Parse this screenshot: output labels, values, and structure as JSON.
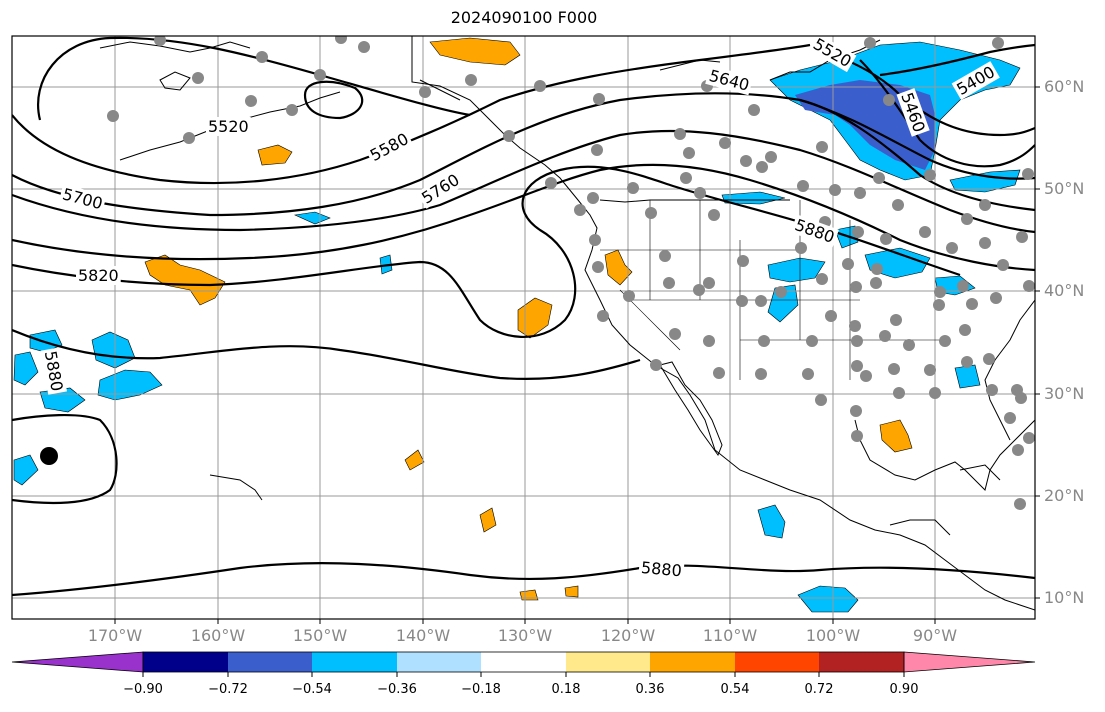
{
  "title": "2024090100 F000",
  "map": {
    "projection": "PlateCarree",
    "lon_labels": [
      "170°W",
      "160°W",
      "150°W",
      "140°W",
      "130°W",
      "120°W",
      "110°W",
      "100°W",
      "90°W"
    ],
    "lat_labels": [
      "60°N",
      "50°N",
      "40°N",
      "30°N",
      "20°N",
      "10°N"
    ],
    "contour_labels": [
      "5520",
      "5580",
      "5640",
      "5700",
      "5760",
      "5820",
      "5880",
      "5880",
      "5880",
      "5520",
      "5400",
      "5460"
    ],
    "colors": {
      "border": "#000000",
      "grid": "#999999",
      "station": "#888888",
      "storm_marker": "#000000"
    }
  },
  "colorbar": {
    "colors": [
      "#9932cc",
      "#00008b",
      "#3a5fcd",
      "#00bfff",
      "#b0e0ff",
      "#ffffff",
      "#ffe98a",
      "#ffa500",
      "#ff4500",
      "#b22222",
      "#ff88aa"
    ],
    "tick_labels": [
      "−0.90",
      "−0.72",
      "−0.54",
      "−0.36",
      "−0.18",
      "0.18",
      "0.36",
      "0.54",
      "0.72",
      "0.90"
    ]
  }
}
